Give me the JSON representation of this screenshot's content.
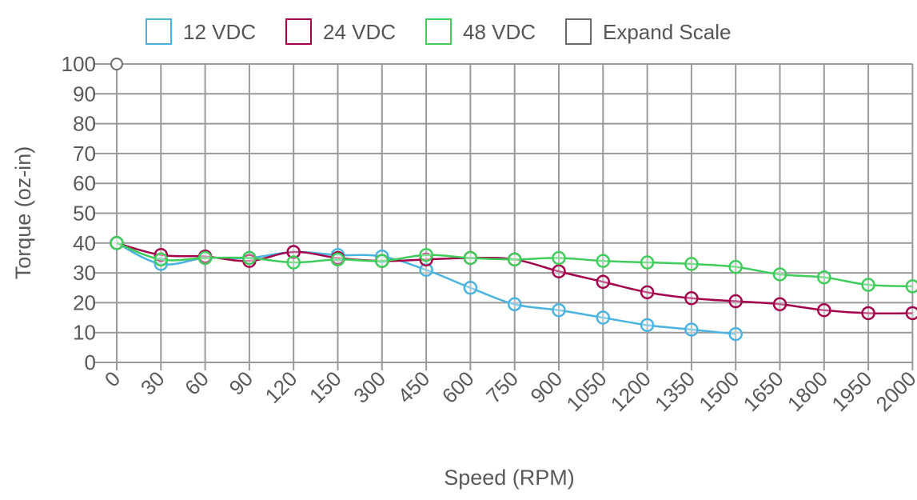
{
  "chart_data": {
    "type": "line",
    "xlabel": "Speed (RPM)",
    "ylabel": "Torque (oz-in)",
    "categories": [
      "0",
      "30",
      "60",
      "90",
      "120",
      "150",
      "300",
      "450",
      "600",
      "750",
      "900",
      "1050",
      "1200",
      "1350",
      "1500",
      "1650",
      "1800",
      "1950",
      "2000"
    ],
    "yticks": [
      "0",
      "10",
      "20",
      "30",
      "40",
      "50",
      "60",
      "70",
      "80",
      "90",
      "100"
    ],
    "ylim": [
      0,
      100
    ],
    "grid": true,
    "legend_position": "top",
    "series": [
      {
        "name": "12 VDC",
        "color": "#4ab3e0",
        "values": [
          40,
          33,
          35,
          35,
          37,
          36,
          35.5,
          31,
          25,
          19.5,
          17.5,
          15,
          12.5,
          11,
          9.5,
          null,
          null,
          null,
          null
        ]
      },
      {
        "name": "24 VDC",
        "color": "#a3004c",
        "values": [
          40,
          36,
          35.5,
          34,
          37,
          35,
          34,
          34.5,
          35,
          34.5,
          30.5,
          27,
          23.5,
          21.5,
          20.5,
          19.5,
          17.5,
          16.5,
          16.5
        ]
      },
      {
        "name": "48 VDC",
        "color": "#3fcc5a",
        "values": [
          40,
          34.5,
          35,
          35,
          33.5,
          34.5,
          34,
          36,
          35,
          34.5,
          35,
          34,
          33.5,
          33,
          32,
          29.5,
          28.5,
          26,
          25.5
        ]
      }
    ],
    "extra_legend": {
      "name": "Expand Scale",
      "color": "#6a6a6a"
    },
    "marker_100": 100
  }
}
